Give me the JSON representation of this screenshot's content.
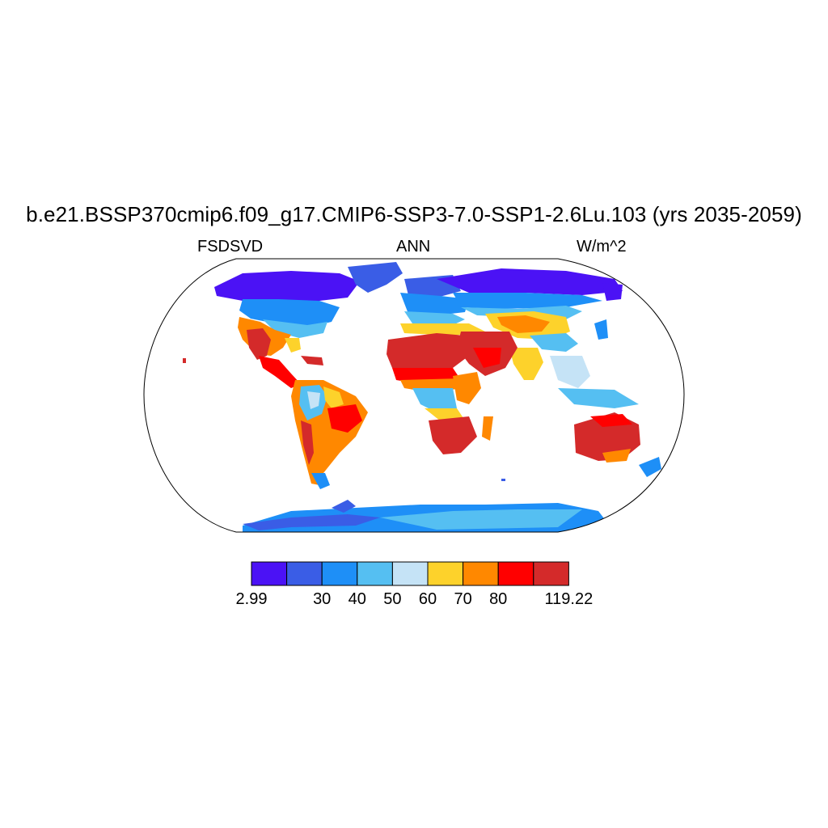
{
  "title": "b.e21.BSSP370cmip6.f09_g17.CMIP6-SSP3-7.0-SSP1-2.6Lu.103 (yrs 2035-2059)",
  "subtitle": {
    "left": "FSDSVD",
    "center": "ANN",
    "right": "W/m^2"
  },
  "colorbar": {
    "colors": [
      "#4b12f5",
      "#3a5de6",
      "#1e8ff7",
      "#55bff2",
      "#c5e3f6",
      "#fdd22b",
      "#ff8800",
      "#ff0000",
      "#d42a2a"
    ],
    "labels": [
      "2.99",
      "30",
      "40",
      "50",
      "60",
      "70",
      "80",
      "119.22"
    ]
  },
  "map": {
    "projection": "robinson",
    "field_colors": {
      "polar": "#4b12f5",
      "ice_sheet": "#3a5de6",
      "cold": "#1e8ff7",
      "cool": "#55bff2",
      "mild": "#c5e3f6",
      "warm": "#fdd22b",
      "hot": "#ff8800",
      "very_hot": "#ff0000",
      "extreme": "#d42a2a"
    }
  }
}
